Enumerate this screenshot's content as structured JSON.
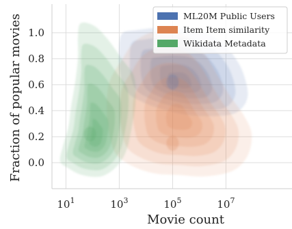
{
  "chart_data": {
    "type": "contour-density",
    "title": "",
    "xlabel": "Movie count",
    "ylabel": "Fraction of popular movies",
    "x_scale": "log",
    "xlim": [
      3,
      3000000000
    ],
    "ylim": [
      -0.2,
      1.22
    ],
    "x_ticks": [
      {
        "value": 10,
        "base": "10",
        "exp": "1"
      },
      {
        "value": 1000,
        "base": "10",
        "exp": "3"
      },
      {
        "value": 100000,
        "base": "10",
        "exp": "5"
      },
      {
        "value": 10000000,
        "base": "10",
        "exp": "7"
      }
    ],
    "y_ticks": [
      {
        "value": 0.0,
        "label": "0.0"
      },
      {
        "value": 0.2,
        "label": "0.2"
      },
      {
        "value": 0.4,
        "label": "0.4"
      },
      {
        "value": 0.6,
        "label": "0.6"
      },
      {
        "value": 0.8,
        "label": "0.8"
      },
      {
        "value": 1.0,
        "label": "1.0"
      }
    ],
    "grid": true,
    "legend_position": "top-right",
    "series": [
      {
        "name": "ML20M Public Users",
        "color": "#4c72b0",
        "center": {
          "x": 100000,
          "y": 0.62
        }
      },
      {
        "name": "Item Item similarity",
        "color": "#dd8452",
        "center": {
          "x": 100000,
          "y": 0.15
        }
      },
      {
        "name": "Wikidata Metadata",
        "color": "#55a868",
        "center": {
          "x": 80,
          "y": 0.22
        }
      }
    ]
  }
}
